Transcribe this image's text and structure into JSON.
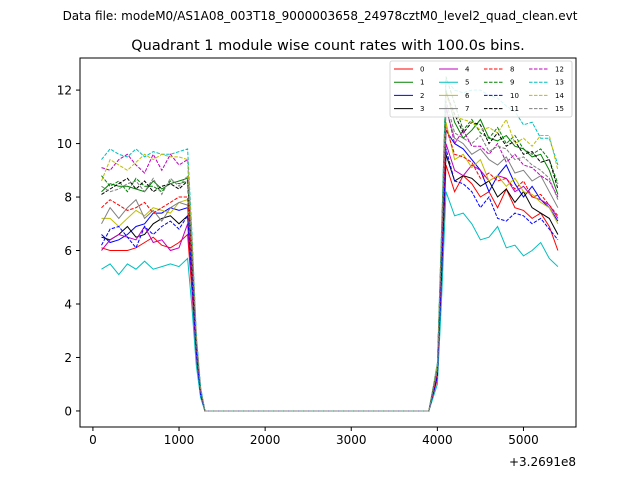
{
  "chart_data": {
    "type": "line",
    "suptitle": "Data file: modeM0/AS1A08_003T18_9000003658_24978cztM0_level2_quad_clean.evt",
    "title": "Quadrant 1 module wise count rates with 100.0s bins.",
    "xlabel": "",
    "ylabel": "",
    "x_offset_label": "+3.2691e8",
    "xlim": [
      -150,
      5610
    ],
    "ylim": [
      -0.6,
      13.2
    ],
    "xticks": [
      0,
      1000,
      2000,
      3000,
      4000,
      5000
    ],
    "yticks": [
      0,
      2,
      4,
      6,
      8,
      10,
      12
    ],
    "grid": false,
    "legend_position": "top-right",
    "x": [
      100,
      200,
      300,
      400,
      500,
      600,
      700,
      800,
      900,
      1000,
      1100,
      1150,
      1200,
      1250,
      1300,
      1400,
      1500,
      1600,
      1700,
      1800,
      1900,
      2000,
      2100,
      2200,
      2300,
      2400,
      2500,
      2600,
      2700,
      2800,
      2900,
      3000,
      3100,
      3200,
      3300,
      3400,
      3500,
      3600,
      3700,
      3800,
      3900,
      4000,
      4050,
      4100,
      4200,
      4300,
      4400,
      4500,
      4600,
      4700,
      4800,
      4900,
      5000,
      5100,
      5200,
      5300,
      5400
    ],
    "series": [
      {
        "name": "0",
        "color": "#ff0000",
        "dash": false,
        "values": [
          6.1,
          6.0,
          6.0,
          6.0,
          6.1,
          6.3,
          6.5,
          6.2,
          6.1,
          6.3,
          6.6,
          4.5,
          2.0,
          0.6,
          0.0,
          0.0,
          0.0,
          0.0,
          0.0,
          0.0,
          0.0,
          0.0,
          0.0,
          0.0,
          0.0,
          0.0,
          0.0,
          0.0,
          0.0,
          0.0,
          0.0,
          0.0,
          0.0,
          0.0,
          0.0,
          0.0,
          0.0,
          0.0,
          0.0,
          0.0,
          0.0,
          1.2,
          5.0,
          9.2,
          8.2,
          8.8,
          8.5,
          8.0,
          8.2,
          7.6,
          8.3,
          7.6,
          7.5,
          7.2,
          7.4,
          6.9,
          6.0
        ]
      },
      {
        "name": "1",
        "color": "#008000",
        "dash": false,
        "values": [
          8.2,
          8.5,
          8.4,
          8.4,
          8.3,
          8.2,
          8.6,
          8.3,
          8.5,
          8.6,
          8.7,
          5.9,
          2.6,
          0.8,
          0.0,
          0.0,
          0.0,
          0.0,
          0.0,
          0.0,
          0.0,
          0.0,
          0.0,
          0.0,
          0.0,
          0.0,
          0.0,
          0.0,
          0.0,
          0.0,
          0.0,
          0.0,
          0.0,
          0.0,
          0.0,
          0.0,
          0.0,
          0.0,
          0.0,
          0.0,
          0.0,
          1.6,
          6.5,
          12.0,
          10.8,
          10.2,
          10.5,
          10.9,
          10.2,
          10.1,
          10.3,
          9.9,
          9.8,
          9.5,
          9.6,
          9.0,
          8.1
        ]
      },
      {
        "name": "2",
        "color": "#0000ff",
        "dash": false,
        "values": [
          6.6,
          6.3,
          6.4,
          6.6,
          6.9,
          7.0,
          7.4,
          7.4,
          7.6,
          7.5,
          7.6,
          5.2,
          2.3,
          0.7,
          0.0,
          0.0,
          0.0,
          0.0,
          0.0,
          0.0,
          0.0,
          0.0,
          0.0,
          0.0,
          0.0,
          0.0,
          0.0,
          0.0,
          0.0,
          0.0,
          0.0,
          0.0,
          0.0,
          0.0,
          0.0,
          0.0,
          0.0,
          0.0,
          0.0,
          0.0,
          0.0,
          1.4,
          5.7,
          10.5,
          10.0,
          9.8,
          9.4,
          9.0,
          8.2,
          8.8,
          9.2,
          8.5,
          8.0,
          8.4,
          7.9,
          7.6,
          7.1
        ]
      },
      {
        "name": "3",
        "color": "#000000",
        "dash": false,
        "values": [
          6.5,
          6.4,
          6.6,
          6.9,
          6.5,
          6.6,
          7.0,
          7.2,
          7.3,
          7.0,
          7.3,
          5.0,
          2.2,
          0.6,
          0.0,
          0.0,
          0.0,
          0.0,
          0.0,
          0.0,
          0.0,
          0.0,
          0.0,
          0.0,
          0.0,
          0.0,
          0.0,
          0.0,
          0.0,
          0.0,
          0.0,
          0.0,
          0.0,
          0.0,
          0.0,
          0.0,
          0.0,
          0.0,
          0.0,
          0.0,
          0.0,
          1.3,
          5.2,
          9.6,
          8.6,
          8.8,
          8.7,
          8.4,
          8.6,
          8.0,
          8.3,
          7.8,
          8.2,
          7.6,
          7.4,
          7.2,
          6.6
        ]
      },
      {
        "name": "4",
        "color": "#bf00bf",
        "dash": false,
        "values": [
          6.0,
          6.4,
          6.6,
          6.5,
          6.4,
          6.9,
          6.3,
          6.4,
          6.0,
          6.1,
          7.0,
          4.8,
          2.1,
          0.6,
          0.0,
          0.0,
          0.0,
          0.0,
          0.0,
          0.0,
          0.0,
          0.0,
          0.0,
          0.0,
          0.0,
          0.0,
          0.0,
          0.0,
          0.0,
          0.0,
          0.0,
          0.0,
          0.0,
          0.0,
          0.0,
          0.0,
          0.0,
          0.0,
          0.0,
          0.0,
          0.0,
          1.3,
          5.4,
          10.0,
          9.0,
          8.8,
          9.2,
          9.0,
          8.6,
          8.8,
          8.7,
          8.2,
          8.4,
          8.0,
          7.9,
          7.7,
          7.2
        ]
      },
      {
        "name": "5",
        "color": "#00bfbf",
        "dash": false,
        "values": [
          5.3,
          5.5,
          5.1,
          5.5,
          5.3,
          5.6,
          5.3,
          5.4,
          5.5,
          5.4,
          5.7,
          3.9,
          1.7,
          0.5,
          0.0,
          0.0,
          0.0,
          0.0,
          0.0,
          0.0,
          0.0,
          0.0,
          0.0,
          0.0,
          0.0,
          0.0,
          0.0,
          0.0,
          0.0,
          0.0,
          0.0,
          0.0,
          0.0,
          0.0,
          0.0,
          0.0,
          0.0,
          0.0,
          0.0,
          0.0,
          0.0,
          1.0,
          4.3,
          8.2,
          7.3,
          7.4,
          7.0,
          6.4,
          6.5,
          6.9,
          6.1,
          6.2,
          5.8,
          6.0,
          6.3,
          5.7,
          5.4
        ]
      },
      {
        "name": "6",
        "color": "#bfbf00",
        "dash": false,
        "values": [
          7.2,
          7.2,
          6.9,
          7.2,
          7.5,
          7.3,
          7.6,
          7.5,
          7.4,
          7.8,
          7.9,
          5.4,
          2.4,
          0.7,
          0.0,
          0.0,
          0.0,
          0.0,
          0.0,
          0.0,
          0.0,
          0.0,
          0.0,
          0.0,
          0.0,
          0.0,
          0.0,
          0.0,
          0.0,
          0.0,
          0.0,
          0.0,
          0.0,
          0.0,
          0.0,
          0.0,
          0.0,
          0.0,
          0.0,
          0.0,
          0.0,
          1.4,
          5.8,
          10.8,
          9.4,
          9.6,
          9.1,
          9.4,
          8.6,
          8.8,
          8.4,
          8.7,
          8.2,
          8.1,
          7.8,
          7.6,
          7.0
        ]
      },
      {
        "name": "7",
        "color": "#808080",
        "dash": false,
        "values": [
          7.0,
          7.6,
          7.2,
          7.6,
          7.9,
          7.2,
          7.5,
          7.1,
          7.6,
          7.8,
          7.7,
          5.3,
          2.3,
          0.7,
          0.0,
          0.0,
          0.0,
          0.0,
          0.0,
          0.0,
          0.0,
          0.0,
          0.0,
          0.0,
          0.0,
          0.0,
          0.0,
          0.0,
          0.0,
          0.0,
          0.0,
          0.0,
          0.0,
          0.0,
          0.0,
          0.0,
          0.0,
          0.0,
          0.0,
          0.0,
          0.0,
          1.5,
          6.1,
          11.3,
          10.2,
          10.0,
          9.6,
          9.8,
          9.4,
          9.2,
          9.5,
          8.9,
          9.0,
          8.6,
          8.8,
          8.2,
          7.6
        ]
      },
      {
        "name": "8",
        "color": "#ff0000",
        "dash": true,
        "values": [
          7.6,
          7.9,
          7.7,
          7.5,
          7.6,
          7.8,
          7.4,
          7.6,
          7.8,
          8.0,
          8.0,
          5.5,
          2.4,
          0.7,
          0.0,
          0.0,
          0.0,
          0.0,
          0.0,
          0.0,
          0.0,
          0.0,
          0.0,
          0.0,
          0.0,
          0.0,
          0.0,
          0.0,
          0.0,
          0.0,
          0.0,
          0.0,
          0.0,
          0.0,
          0.0,
          0.0,
          0.0,
          0.0,
          0.0,
          0.0,
          0.0,
          1.4,
          5.8,
          10.6,
          9.6,
          9.5,
          9.3,
          8.7,
          8.9,
          8.6,
          8.7,
          8.3,
          8.6,
          8.0,
          8.1,
          7.7,
          7.3
        ]
      },
      {
        "name": "9",
        "color": "#008000",
        "dash": true,
        "values": [
          8.8,
          8.4,
          8.6,
          8.2,
          8.7,
          8.4,
          8.4,
          8.2,
          8.6,
          8.5,
          8.6,
          5.9,
          2.6,
          0.8,
          0.0,
          0.0,
          0.0,
          0.0,
          0.0,
          0.0,
          0.0,
          0.0,
          0.0,
          0.0,
          0.0,
          0.0,
          0.0,
          0.0,
          0.0,
          0.0,
          0.0,
          0.0,
          0.0,
          0.0,
          0.0,
          0.0,
          0.0,
          0.0,
          0.0,
          0.0,
          0.0,
          1.7,
          6.8,
          12.5,
          11.5,
          10.5,
          10.9,
          10.4,
          10.2,
          10.6,
          10.0,
          10.3,
          9.8,
          9.6,
          9.8,
          9.4,
          8.5
        ]
      },
      {
        "name": "10",
        "color": "#0000ff",
        "dash": true,
        "values": [
          6.2,
          6.8,
          6.9,
          6.5,
          6.1,
          6.9,
          6.6,
          6.9,
          7.1,
          6.8,
          7.3,
          5.0,
          2.2,
          0.6,
          0.0,
          0.0,
          0.0,
          0.0,
          0.0,
          0.0,
          0.0,
          0.0,
          0.0,
          0.0,
          0.0,
          0.0,
          0.0,
          0.0,
          0.0,
          0.0,
          0.0,
          0.0,
          0.0,
          0.0,
          0.0,
          0.0,
          0.0,
          0.0,
          0.0,
          0.0,
          0.0,
          1.3,
          5.3,
          9.8,
          8.6,
          8.5,
          8.2,
          7.6,
          8.0,
          7.2,
          7.1,
          7.4,
          7.3,
          7.0,
          7.2,
          6.8,
          6.4
        ]
      },
      {
        "name": "11",
        "color": "#000000",
        "dash": true,
        "values": [
          8.1,
          8.3,
          8.5,
          8.7,
          8.3,
          8.6,
          8.2,
          8.4,
          8.5,
          8.3,
          8.6,
          5.9,
          2.6,
          0.8,
          0.0,
          0.0,
          0.0,
          0.0,
          0.0,
          0.0,
          0.0,
          0.0,
          0.0,
          0.0,
          0.0,
          0.0,
          0.0,
          0.0,
          0.0,
          0.0,
          0.0,
          0.0,
          0.0,
          0.0,
          0.0,
          0.0,
          0.0,
          0.0,
          0.0,
          0.0,
          0.0,
          1.7,
          6.6,
          11.9,
          11.1,
          10.4,
          10.8,
          10.7,
          10.0,
          10.4,
          9.9,
          10.1,
          9.6,
          9.7,
          9.3,
          9.4,
          8.3
        ]
      },
      {
        "name": "12",
        "color": "#bf00bf",
        "dash": true,
        "values": [
          9.1,
          9.0,
          9.4,
          9.6,
          9.2,
          8.9,
          9.6,
          9.0,
          9.6,
          9.2,
          9.4,
          6.5,
          2.8,
          0.8,
          0.0,
          0.0,
          0.0,
          0.0,
          0.0,
          0.0,
          0.0,
          0.0,
          0.0,
          0.0,
          0.0,
          0.0,
          0.0,
          0.0,
          0.0,
          0.0,
          0.0,
          0.0,
          0.0,
          0.0,
          0.0,
          0.0,
          0.0,
          0.0,
          0.0,
          0.0,
          0.0,
          1.6,
          6.4,
          11.4,
          10.0,
          10.5,
          9.9,
          9.9,
          9.6,
          10.0,
          9.3,
          9.6,
          9.2,
          9.1,
          8.8,
          8.6,
          8.0
        ]
      },
      {
        "name": "13",
        "color": "#00bfbf",
        "dash": true,
        "values": [
          9.4,
          9.8,
          9.6,
          9.5,
          9.8,
          9.5,
          9.7,
          9.6,
          9.6,
          9.7,
          9.8,
          6.7,
          2.9,
          0.9,
          0.0,
          0.0,
          0.0,
          0.0,
          0.0,
          0.0,
          0.0,
          0.0,
          0.0,
          0.0,
          0.0,
          0.0,
          0.0,
          0.0,
          0.0,
          0.0,
          0.0,
          0.0,
          0.0,
          0.0,
          0.0,
          0.0,
          0.0,
          0.0,
          0.0,
          0.0,
          0.0,
          1.8,
          7.0,
          12.4,
          12.0,
          11.9,
          12.0,
          12.0,
          11.8,
          11.7,
          11.4,
          11.2,
          10.7,
          10.8,
          10.2,
          10.2,
          9.2
        ]
      },
      {
        "name": "14",
        "color": "#bfbf00",
        "dash": true,
        "values": [
          8.6,
          9.4,
          9.2,
          9.0,
          9.3,
          9.6,
          9.4,
          9.6,
          9.5,
          9.5,
          9.4,
          6.4,
          2.8,
          0.8,
          0.0,
          0.0,
          0.0,
          0.0,
          0.0,
          0.0,
          0.0,
          0.0,
          0.0,
          0.0,
          0.0,
          0.0,
          0.0,
          0.0,
          0.0,
          0.0,
          0.0,
          0.0,
          0.0,
          0.0,
          0.0,
          0.0,
          0.0,
          0.0,
          0.0,
          0.0,
          0.0,
          1.7,
          6.7,
          11.8,
          11.0,
          10.9,
          10.8,
          10.5,
          10.6,
          10.4,
          10.9,
          10.0,
          10.2,
          9.9,
          10.3,
          10.3,
          9.0
        ]
      },
      {
        "name": "15",
        "color": "#808080",
        "dash": true,
        "values": [
          8.4,
          8.2,
          8.3,
          8.5,
          8.6,
          8.2,
          8.7,
          8.1,
          8.7,
          8.4,
          8.8,
          6.0,
          2.6,
          0.8,
          0.0,
          0.0,
          0.0,
          0.0,
          0.0,
          0.0,
          0.0,
          0.0,
          0.0,
          0.0,
          0.0,
          0.0,
          0.0,
          0.0,
          0.0,
          0.0,
          0.0,
          0.0,
          0.0,
          0.0,
          0.0,
          0.0,
          0.0,
          0.0,
          0.0,
          0.0,
          0.0,
          1.6,
          6.5,
          11.6,
          10.4,
          10.2,
          10.0,
          10.3,
          9.7,
          9.9,
          9.8,
          9.4,
          9.5,
          9.2,
          9.0,
          8.7,
          7.9
        ]
      }
    ]
  }
}
